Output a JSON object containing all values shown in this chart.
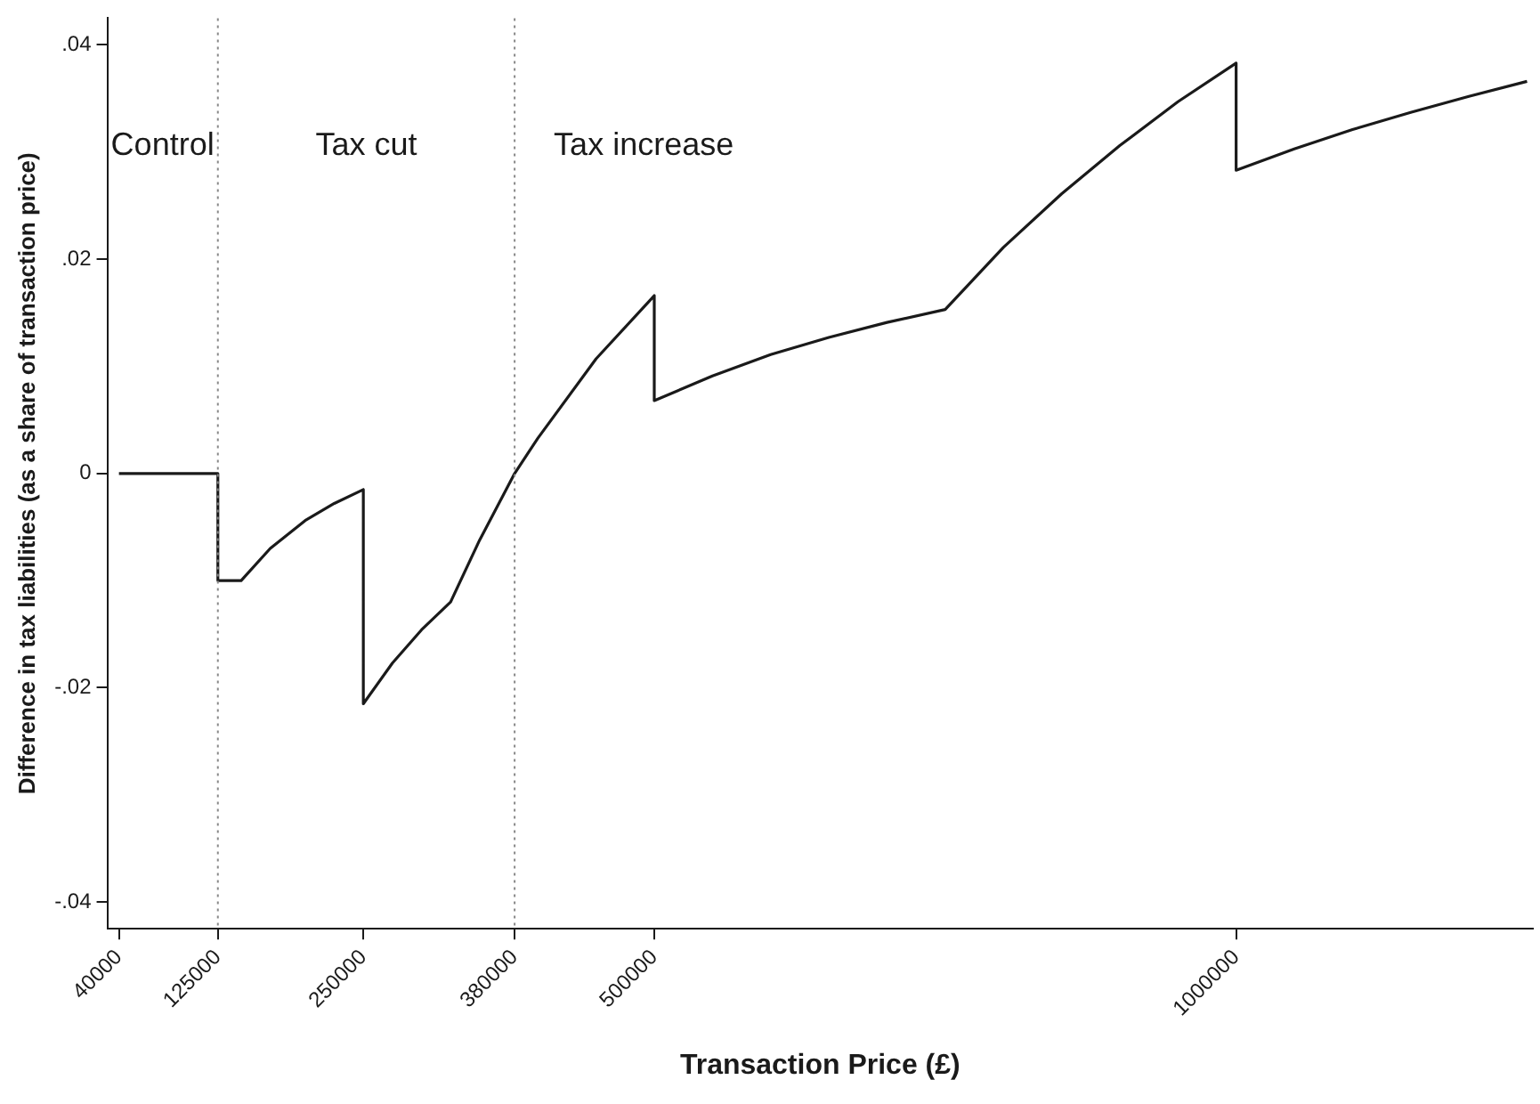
{
  "chart_data": {
    "type": "line",
    "xlabel": "Transaction Price (£)",
    "ylabel": "Difference in tax liabilities (as a share of transaction price)",
    "x": [
      40000,
      125000,
      125000,
      145000,
      170000,
      200000,
      225000,
      250000,
      250000,
      275000,
      300000,
      325000,
      350000,
      380000,
      400000,
      450000,
      500000,
      500000,
      550000,
      600000,
      650000,
      700000,
      750000,
      800000,
      850000,
      900000,
      950000,
      1000000,
      1000000,
      1050000,
      1100000,
      1150000,
      1200000,
      1250000
    ],
    "series": [
      {
        "color": "#1a1a1a",
        "values": [
          0,
          0,
          -0.01,
          -0.01,
          -0.007,
          -0.0044,
          -0.0028,
          -0.0015,
          -0.0215,
          -0.0177,
          -0.0146,
          -0.012,
          -0.0062,
          0,
          0.0033,
          0.0107,
          0.0166,
          0.0068,
          0.0091,
          0.0111,
          0.0127,
          0.0141,
          0.0153,
          0.0211,
          0.0261,
          0.0306,
          0.0347,
          0.0383,
          0.0283,
          0.0303,
          0.0321,
          0.0337,
          0.0352,
          0.0366
        ]
      }
    ],
    "xlim": [
      30000,
      1255000
    ],
    "xticks": [
      40000,
      125000,
      250000,
      380000,
      500000,
      1000000
    ],
    "ylim": [
      -0.0425,
      0.0425
    ],
    "yticks": [
      {
        "value": -0.04,
        "label": "-.04"
      },
      {
        "value": -0.02,
        "label": "-.02"
      },
      0,
      {
        "value": 0.02,
        "label": ".02"
      },
      {
        "value": 0.04,
        "label": ".04"
      }
    ],
    "grid": false,
    "legend": false,
    "marker": "none",
    "line_style": "solid",
    "ref_lines": [
      {
        "axis": "x",
        "value": 125000,
        "color": "#888888",
        "line_style": "dotted"
      },
      {
        "axis": "x",
        "value": 380000,
        "color": "#888888",
        "line_style": "dotted"
      }
    ],
    "annotations": [
      "Control",
      "Tax cut",
      "Tax increase"
    ]
  }
}
